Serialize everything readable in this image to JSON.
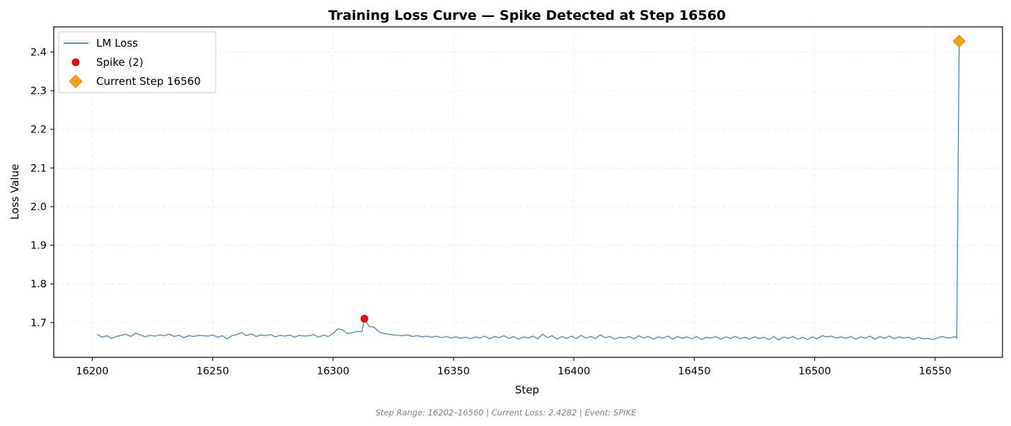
{
  "chart_data": {
    "type": "line",
    "title": "Training Loss Curve — Spike Detected at Step 16560",
    "xlabel": "Step",
    "ylabel": "Loss Value",
    "xlim": [
      16184,
      16578
    ],
    "ylim": [
      1.61,
      2.465
    ],
    "x_ticks": [
      16200,
      16250,
      16300,
      16350,
      16400,
      16450,
      16500,
      16550
    ],
    "y_ticks": [
      1.7,
      1.8,
      1.9,
      2.0,
      2.1,
      2.2,
      2.3,
      2.4
    ],
    "grid": true,
    "legend_position": "top-left",
    "series": [
      {
        "name": "LM Loss",
        "kind": "line",
        "color": "#1f77b4",
        "points": [
          [
            16202,
            1.67
          ],
          [
            16204,
            1.662
          ],
          [
            16206,
            1.666
          ],
          [
            16208,
            1.659
          ],
          [
            16210,
            1.664
          ],
          [
            16212,
            1.667
          ],
          [
            16214,
            1.67
          ],
          [
            16216,
            1.664
          ],
          [
            16218,
            1.673
          ],
          [
            16220,
            1.668
          ],
          [
            16222,
            1.663
          ],
          [
            16224,
            1.667
          ],
          [
            16226,
            1.665
          ],
          [
            16228,
            1.668
          ],
          [
            16230,
            1.666
          ],
          [
            16232,
            1.67
          ],
          [
            16234,
            1.664
          ],
          [
            16236,
            1.667
          ],
          [
            16238,
            1.661
          ],
          [
            16240,
            1.666
          ],
          [
            16242,
            1.664
          ],
          [
            16244,
            1.667
          ],
          [
            16246,
            1.666
          ],
          [
            16248,
            1.665
          ],
          [
            16250,
            1.668
          ],
          [
            16252,
            1.662
          ],
          [
            16254,
            1.666
          ],
          [
            16256,
            1.658
          ],
          [
            16258,
            1.666
          ],
          [
            16260,
            1.669
          ],
          [
            16262,
            1.674
          ],
          [
            16264,
            1.666
          ],
          [
            16266,
            1.671
          ],
          [
            16268,
            1.664
          ],
          [
            16270,
            1.668
          ],
          [
            16272,
            1.666
          ],
          [
            16274,
            1.669
          ],
          [
            16276,
            1.663
          ],
          [
            16278,
            1.667
          ],
          [
            16280,
            1.665
          ],
          [
            16282,
            1.668
          ],
          [
            16284,
            1.662
          ],
          [
            16286,
            1.667
          ],
          [
            16288,
            1.665
          ],
          [
            16290,
            1.666
          ],
          [
            16292,
            1.669
          ],
          [
            16294,
            1.662
          ],
          [
            16296,
            1.668
          ],
          [
            16298,
            1.664
          ],
          [
            16300,
            1.672
          ],
          [
            16302,
            1.684
          ],
          [
            16304,
            1.681
          ],
          [
            16306,
            1.671
          ],
          [
            16308,
            1.674
          ],
          [
            16310,
            1.677
          ],
          [
            16312,
            1.676
          ],
          [
            16313,
            1.71
          ],
          [
            16315,
            1.69
          ],
          [
            16317,
            1.688
          ],
          [
            16319,
            1.676
          ],
          [
            16321,
            1.672
          ],
          [
            16323,
            1.67
          ],
          [
            16325,
            1.668
          ],
          [
            16327,
            1.667
          ],
          [
            16329,
            1.666
          ],
          [
            16331,
            1.668
          ],
          [
            16333,
            1.664
          ],
          [
            16335,
            1.666
          ],
          [
            16337,
            1.663
          ],
          [
            16339,
            1.665
          ],
          [
            16341,
            1.662
          ],
          [
            16343,
            1.665
          ],
          [
            16345,
            1.661
          ],
          [
            16347,
            1.664
          ],
          [
            16349,
            1.66
          ],
          [
            16351,
            1.663
          ],
          [
            16353,
            1.659
          ],
          [
            16355,
            1.662
          ],
          [
            16357,
            1.658
          ],
          [
            16359,
            1.663
          ],
          [
            16361,
            1.66
          ],
          [
            16363,
            1.665
          ],
          [
            16365,
            1.658
          ],
          [
            16367,
            1.664
          ],
          [
            16369,
            1.661
          ],
          [
            16371,
            1.666
          ],
          [
            16373,
            1.659
          ],
          [
            16375,
            1.664
          ],
          [
            16377,
            1.657
          ],
          [
            16379,
            1.663
          ],
          [
            16381,
            1.66
          ],
          [
            16383,
            1.665
          ],
          [
            16385,
            1.658
          ],
          [
            16387,
            1.67
          ],
          [
            16389,
            1.661
          ],
          [
            16391,
            1.666
          ],
          [
            16393,
            1.657
          ],
          [
            16395,
            1.664
          ],
          [
            16397,
            1.659
          ],
          [
            16399,
            1.665
          ],
          [
            16401,
            1.658
          ],
          [
            16403,
            1.667
          ],
          [
            16405,
            1.66
          ],
          [
            16407,
            1.664
          ],
          [
            16409,
            1.659
          ],
          [
            16411,
            1.668
          ],
          [
            16413,
            1.661
          ],
          [
            16415,
            1.664
          ],
          [
            16417,
            1.657
          ],
          [
            16419,
            1.662
          ],
          [
            16421,
            1.66
          ],
          [
            16423,
            1.664
          ],
          [
            16425,
            1.658
          ],
          [
            16427,
            1.666
          ],
          [
            16429,
            1.66
          ],
          [
            16431,
            1.664
          ],
          [
            16433,
            1.657
          ],
          [
            16435,
            1.663
          ],
          [
            16437,
            1.66
          ],
          [
            16439,
            1.665
          ],
          [
            16441,
            1.657
          ],
          [
            16443,
            1.664
          ],
          [
            16445,
            1.659
          ],
          [
            16447,
            1.663
          ],
          [
            16449,
            1.658
          ],
          [
            16451,
            1.664
          ],
          [
            16453,
            1.656
          ],
          [
            16455,
            1.662
          ],
          [
            16457,
            1.66
          ],
          [
            16459,
            1.664
          ],
          [
            16461,
            1.657
          ],
          [
            16463,
            1.663
          ],
          [
            16465,
            1.659
          ],
          [
            16467,
            1.664
          ],
          [
            16469,
            1.658
          ],
          [
            16471,
            1.662
          ],
          [
            16473,
            1.657
          ],
          [
            16475,
            1.663
          ],
          [
            16477,
            1.659
          ],
          [
            16479,
            1.662
          ],
          [
            16481,
            1.656
          ],
          [
            16483,
            1.664
          ],
          [
            16485,
            1.655
          ],
          [
            16487,
            1.663
          ],
          [
            16489,
            1.659
          ],
          [
            16491,
            1.664
          ],
          [
            16493,
            1.657
          ],
          [
            16495,
            1.662
          ],
          [
            16497,
            1.656
          ],
          [
            16499,
            1.663
          ],
          [
            16501,
            1.658
          ],
          [
            16503,
            1.666
          ],
          [
            16505,
            1.663
          ],
          [
            16507,
            1.665
          ],
          [
            16509,
            1.66
          ],
          [
            16511,
            1.663
          ],
          [
            16513,
            1.659
          ],
          [
            16515,
            1.664
          ],
          [
            16517,
            1.657
          ],
          [
            16519,
            1.663
          ],
          [
            16521,
            1.66
          ],
          [
            16523,
            1.665
          ],
          [
            16525,
            1.657
          ],
          [
            16527,
            1.664
          ],
          [
            16529,
            1.659
          ],
          [
            16531,
            1.665
          ],
          [
            16533,
            1.658
          ],
          [
            16535,
            1.663
          ],
          [
            16537,
            1.66
          ],
          [
            16539,
            1.662
          ],
          [
            16541,
            1.656
          ],
          [
            16543,
            1.662
          ],
          [
            16545,
            1.658
          ],
          [
            16547,
            1.659
          ],
          [
            16549,
            1.656
          ],
          [
            16551,
            1.66
          ],
          [
            16553,
            1.664
          ],
          [
            16555,
            1.66
          ],
          [
            16557,
            1.661
          ],
          [
            16558,
            1.664
          ],
          [
            16559,
            1.66
          ],
          [
            16560,
            2.428
          ]
        ]
      },
      {
        "name": "Spike (2)",
        "kind": "scatter",
        "marker": "circle",
        "color": "#ff0000",
        "points": [
          [
            16313,
            1.71
          ]
        ]
      },
      {
        "name": "Current Step 16560",
        "kind": "scatter",
        "marker": "diamond",
        "color": "#ff9f0d",
        "points": [
          [
            16560,
            2.428
          ]
        ]
      }
    ],
    "footnote": "Step Range: 16202–16560 | Current Loss: 2.4282 | Event: SPIKE"
  }
}
